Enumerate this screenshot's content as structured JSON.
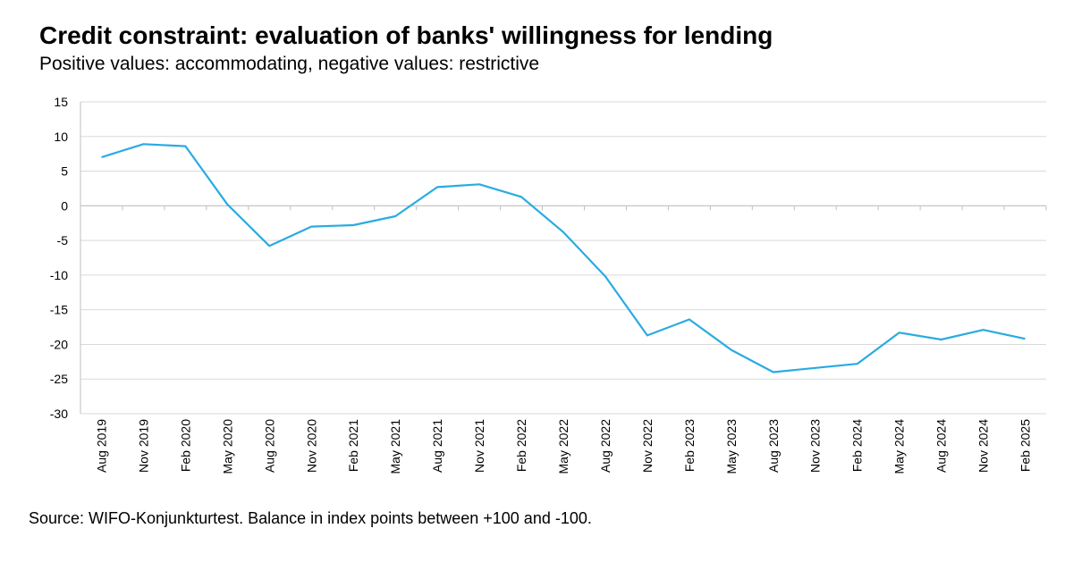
{
  "title": "Credit constraint: evaluation of banks' willingness for lending",
  "subtitle": "Positive values: accommodating, negative values: restrictive",
  "source": "Source: WIFO-Konjunkturtest. Balance in index points between +100 and -100.",
  "colors": {
    "line": "#29abe2",
    "grid": "#d9d9d9",
    "axis": "#bfbfbf"
  },
  "chart_data": {
    "type": "line",
    "title": "Credit constraint: evaluation of banks' willingness for lending",
    "subtitle": "Positive values: accommodating, negative values: restrictive",
    "xlabel": "",
    "ylabel": "",
    "ylim": [
      -30,
      15
    ],
    "yticks": [
      15,
      10,
      5,
      0,
      -5,
      -10,
      -15,
      -20,
      -25,
      -30
    ],
    "grid": true,
    "legend": "none",
    "categories": [
      "Aug 2019",
      "Nov 2019",
      "Feb 2020",
      "May 2020",
      "Aug 2020",
      "Nov 2020",
      "Feb 2021",
      "May 2021",
      "Aug 2021",
      "Nov 2021",
      "Feb 2022",
      "May 2022",
      "Aug 2022",
      "Nov 2022",
      "Feb 2023",
      "May 2023",
      "Aug 2023",
      "Nov 2023",
      "Feb 2024",
      "May 2024",
      "Aug 2024",
      "Nov 2024",
      "Feb 2025"
    ],
    "series": [
      {
        "values": [
          7.0,
          8.9,
          8.6,
          0.2,
          -5.8,
          -3.0,
          -2.8,
          -1.5,
          2.7,
          3.1,
          1.3,
          -3.8,
          -10.2,
          -18.7,
          -16.4,
          -20.8,
          -24.0,
          -23.4,
          -22.8,
          -18.3,
          -19.3,
          -17.9,
          -19.2
        ]
      }
    ]
  }
}
